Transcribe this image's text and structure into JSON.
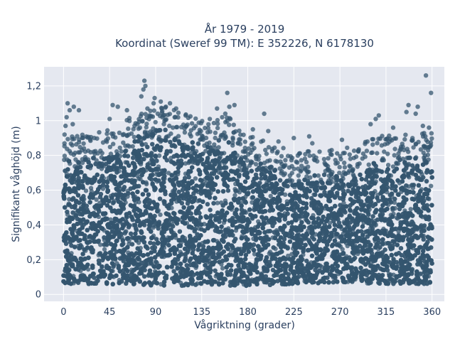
{
  "chart_data": {
    "type": "scatter",
    "title_line1": "År 1979 - 2019",
    "title_line2": "Koordinat (Sweref 99 TM): E 352226, N 6178130",
    "xlabel": "Vågriktning (grader)",
    "ylabel": "Signifikant våghöjd (m)",
    "xlim": [
      -19,
      372
    ],
    "ylim": [
      -0.04,
      1.31
    ],
    "xticks": [
      0,
      45,
      90,
      135,
      180,
      225,
      270,
      315,
      360
    ],
    "xtick_labels": [
      "0",
      "45",
      "90",
      "135",
      "180",
      "225",
      "270",
      "315",
      "360"
    ],
    "yticks": [
      0,
      0.2,
      0.4,
      0.6,
      0.8,
      1,
      1.2
    ],
    "ytick_labels": [
      "0",
      "0,2",
      "0,4",
      "0,6",
      "0,8",
      "1",
      "1,2"
    ],
    "grid": true,
    "marker_color": "#34566f",
    "plot_bg": "#e5e8f0",
    "dense_band": [
      {
        "x": 0,
        "ymin": 0.06,
        "ymax": 0.72
      },
      {
        "x": 45,
        "ymin": 0.06,
        "ymax": 0.78
      },
      {
        "x": 80,
        "ymin": 0.05,
        "ymax": 0.88
      },
      {
        "x": 100,
        "ymin": 0.05,
        "ymax": 0.9
      },
      {
        "x": 135,
        "ymin": 0.05,
        "ymax": 0.83
      },
      {
        "x": 160,
        "ymin": 0.05,
        "ymax": 0.85
      },
      {
        "x": 180,
        "ymin": 0.05,
        "ymax": 0.74
      },
      {
        "x": 225,
        "ymin": 0.06,
        "ymax": 0.64
      },
      {
        "x": 270,
        "ymin": 0.07,
        "ymax": 0.66
      },
      {
        "x": 315,
        "ymin": 0.06,
        "ymax": 0.74
      },
      {
        "x": 360,
        "ymin": 0.06,
        "ymax": 0.75
      }
    ],
    "outliers": [
      {
        "x": 1,
        "y": 0.92
      },
      {
        "x": 3,
        "y": 1.02
      },
      {
        "x": 4,
        "y": 1.1
      },
      {
        "x": 6,
        "y": 1.06
      },
      {
        "x": 10,
        "y": 1.08
      },
      {
        "x": 15,
        "y": 1.06
      },
      {
        "x": 9,
        "y": 0.98
      },
      {
        "x": 2,
        "y": 0.97
      },
      {
        "x": 48,
        "y": 1.09
      },
      {
        "x": 53,
        "y": 1.08
      },
      {
        "x": 45,
        "y": 1.01
      },
      {
        "x": 62,
        "y": 1.06
      },
      {
        "x": 76,
        "y": 1.14
      },
      {
        "x": 78,
        "y": 1.18
      },
      {
        "x": 79,
        "y": 1.23
      },
      {
        "x": 80,
        "y": 1.2
      },
      {
        "x": 82,
        "y": 1.07
      },
      {
        "x": 88,
        "y": 1.1
      },
      {
        "x": 89,
        "y": 1.13
      },
      {
        "x": 95,
        "y": 1.11
      },
      {
        "x": 100,
        "y": 1.08
      },
      {
        "x": 104,
        "y": 1.1
      },
      {
        "x": 110,
        "y": 1.07
      },
      {
        "x": 92,
        "y": 1.04
      },
      {
        "x": 150,
        "y": 1.07
      },
      {
        "x": 158,
        "y": 1.04
      },
      {
        "x": 160,
        "y": 1.16
      },
      {
        "x": 162,
        "y": 1.08
      },
      {
        "x": 167,
        "y": 1.09
      },
      {
        "x": 155,
        "y": 1.02
      },
      {
        "x": 196,
        "y": 1.04
      },
      {
        "x": 185,
        "y": 0.95
      },
      {
        "x": 200,
        "y": 0.94
      },
      {
        "x": 225,
        "y": 0.9
      },
      {
        "x": 240,
        "y": 0.91
      },
      {
        "x": 243,
        "y": 0.87
      },
      {
        "x": 272,
        "y": 0.89
      },
      {
        "x": 300,
        "y": 0.98
      },
      {
        "x": 305,
        "y": 1.01
      },
      {
        "x": 308,
        "y": 1.03
      },
      {
        "x": 322,
        "y": 0.96
      },
      {
        "x": 335,
        "y": 1.05
      },
      {
        "x": 337,
        "y": 1.09
      },
      {
        "x": 344,
        "y": 1.04
      },
      {
        "x": 346,
        "y": 1.08
      },
      {
        "x": 351,
        "y": 0.97
      },
      {
        "x": 354,
        "y": 1.26
      },
      {
        "x": 359,
        "y": 1.16
      },
      {
        "x": 357,
        "y": 0.96
      },
      {
        "x": 30,
        "y": 0.9
      },
      {
        "x": 120,
        "y": 0.97
      },
      {
        "x": 210,
        "y": 0.88
      }
    ]
  }
}
